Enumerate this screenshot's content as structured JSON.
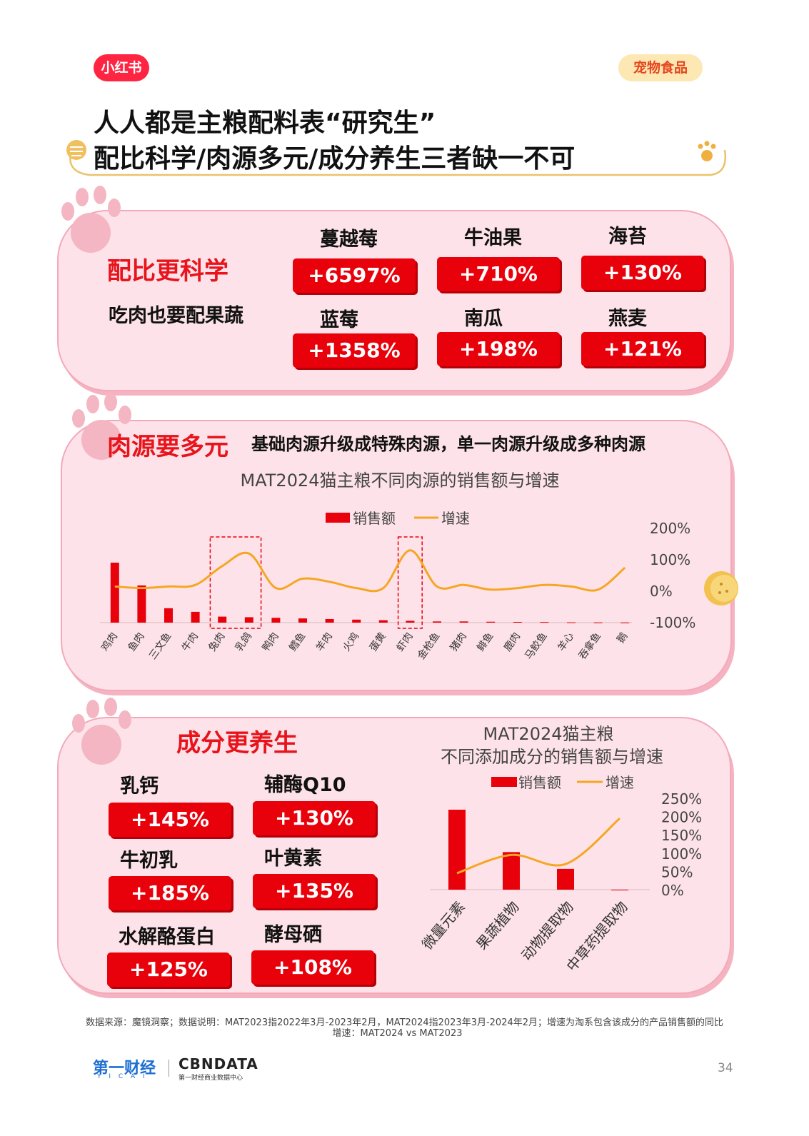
{
  "header": {
    "brand_logo": "小红书",
    "category_tag": "宠物食品",
    "title_line1": "人人都是主粮配料表“研究生”",
    "title_line2": "配比科学/肉源多元/成分养生三者缺一不可"
  },
  "section1": {
    "title": "配比更科学",
    "subtitle": "吃肉也要配果蔬",
    "items": [
      {
        "name": "蔓越莓",
        "growth": "+6597%"
      },
      {
        "name": "牛油果",
        "growth": "+710%"
      },
      {
        "name": "海苔",
        "growth": "+130%"
      },
      {
        "name": "蓝莓",
        "growth": "+1358%"
      },
      {
        "name": "南瓜",
        "growth": "+198%"
      },
      {
        "name": "燕麦",
        "growth": "+121%"
      }
    ]
  },
  "section2": {
    "title": "肉源要多元",
    "subtitle": "基础肉源升级成特殊肉源，单一肉源升级成多种肉源",
    "chart_title": "MAT2024猫主粮不同肉源的销售额与增速",
    "legend_sales": "销售额",
    "legend_growth": "增速"
  },
  "section3": {
    "title": "成分更养生",
    "items": [
      {
        "name": "乳钙",
        "growth": "+145%"
      },
      {
        "name": "辅酶Q10",
        "growth": "+130%"
      },
      {
        "name": "牛初乳",
        "growth": "+185%"
      },
      {
        "name": "叶黄素",
        "growth": "+135%"
      },
      {
        "name": "水解酪蛋白",
        "growth": "+125%"
      },
      {
        "name": "酵母硒",
        "growth": "+108%"
      }
    ],
    "chart_title_line1": "MAT2024猫主粮",
    "chart_title_line2": "不同添加成分的销售额与增速",
    "legend_sales": "销售额",
    "legend_growth": "增速"
  },
  "chart_data": [
    {
      "type": "bar",
      "title": "MAT2024猫主粮不同肉源的销售额与增速",
      "categories": [
        "鸡肉",
        "鱼肉",
        "三文鱼",
        "牛肉",
        "兔肉",
        "乳鸽",
        "鸭肉",
        "鳕鱼",
        "羊肉",
        "火鸡",
        "蛋黄",
        "虾肉",
        "金枪鱼",
        "猪肉",
        "鲱鱼",
        "鹿肉",
        "马鲛鱼",
        "羊心",
        "吞拿鱼",
        "鹅"
      ],
      "series": [
        {
          "name": "销售额",
          "type": "bar",
          "values": [
            100,
            62,
            24,
            18,
            10,
            9,
            8,
            7,
            6,
            5,
            4,
            3,
            2,
            2,
            1.5,
            1.2,
            1,
            0.5,
            0.3,
            0.2
          ]
        },
        {
          "name": "增速",
          "type": "line",
          "axis": "right",
          "values": [
            15,
            10,
            15,
            20,
            80,
            120,
            10,
            40,
            30,
            10,
            10,
            130,
            15,
            20,
            5,
            10,
            20,
            15,
            5,
            75
          ]
        }
      ],
      "y2lim": [
        -100,
        200
      ],
      "y2ticks": [
        "200%",
        "100%",
        "0%",
        "-100%"
      ],
      "highlighted_categories": [
        "兔肉",
        "乳鸽",
        "虾肉"
      ],
      "legend_position": "top"
    },
    {
      "type": "bar",
      "title": "MAT2024猫主粮 不同添加成分的销售额与增速",
      "categories": [
        "微量元素",
        "果蔬植物",
        "动物提取物",
        "中草药提取物"
      ],
      "series": [
        {
          "name": "销售额",
          "type": "bar",
          "values": [
            100,
            47,
            26,
            0
          ]
        },
        {
          "name": "增速",
          "type": "line",
          "axis": "right",
          "values": [
            45,
            95,
            70,
            195
          ]
        }
      ],
      "y2lim": [
        0,
        250
      ],
      "y2ticks": [
        "250%",
        "200%",
        "150%",
        "100%",
        "50%",
        "0%"
      ],
      "legend_position": "top"
    }
  ],
  "footer": {
    "note_line1": "数据来源：魔镜洞察；数据说明：MAT2023指2022年3月-2023年2月，MAT2024指2023年3月-2024年2月；增速为淘系包含该成分的产品销售额的同比",
    "note_line2": "增速：MAT2024 vs MAT2023",
    "brand1": "第一财经",
    "brand1_sub": "Y I C A I",
    "brand2": "CBNDATA",
    "brand2_sub": "第一财经商业数据中心",
    "page_number": "34"
  },
  "colors": {
    "red": "#e8000b",
    "orange": "#f5a623",
    "pink_panel": "#fde3e9",
    "pink_border": "#f3a9ba",
    "paw": "#f4b6c2"
  }
}
